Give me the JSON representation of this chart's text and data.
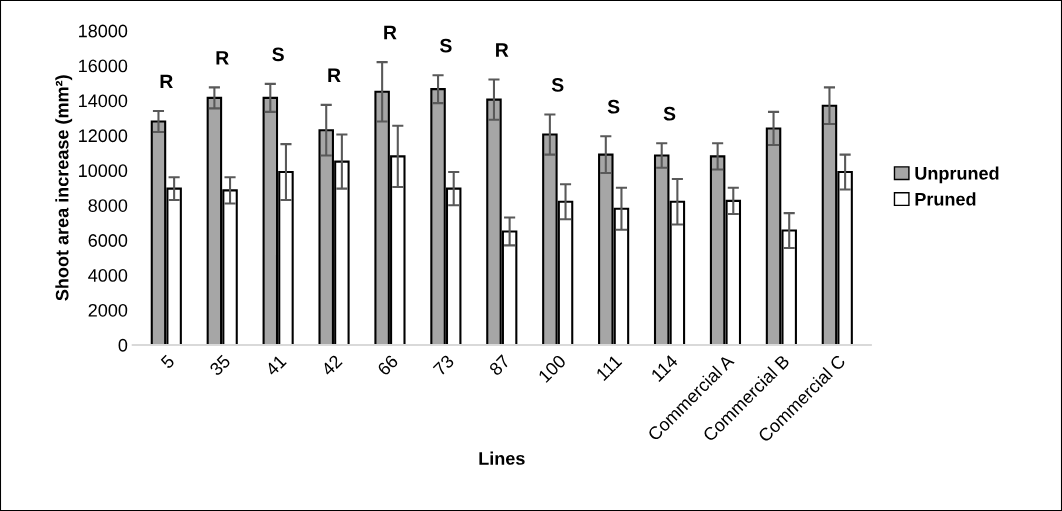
{
  "chart_data": {
    "type": "bar",
    "xlabel": "Lines",
    "ylabel": "Shoot area increase (mm²)",
    "categories": [
      "5",
      "35",
      "41",
      "42",
      "66",
      "73",
      "87",
      "100",
      "111",
      "114",
      "Commercial A",
      "Commercial B",
      "Commercial C"
    ],
    "series": [
      {
        "name": "Unpruned",
        "color": "#a6a6a6",
        "values": [
          12800,
          14150,
          14150,
          12300,
          14500,
          14650,
          14050,
          12050,
          10900,
          10850,
          10800,
          12400,
          13700
        ],
        "errors": [
          600,
          600,
          800,
          1450,
          1700,
          800,
          1150,
          1150,
          1050,
          700,
          750,
          950,
          1050
        ]
      },
      {
        "name": "Pruned",
        "color": "#ffffff",
        "values": [
          8950,
          8850,
          9900,
          10500,
          10800,
          8950,
          6500,
          8200,
          7800,
          8200,
          8250,
          6550,
          9900
        ],
        "errors": [
          650,
          750,
          1600,
          1550,
          1750,
          950,
          800,
          1000,
          1200,
          1300,
          750,
          1000,
          1000
        ]
      }
    ],
    "ylim": [
      0,
      18000
    ],
    "yticks": [
      0,
      2000,
      4000,
      6000,
      8000,
      10000,
      12000,
      14000,
      16000,
      18000
    ],
    "annotations": [
      "R",
      "R",
      "S",
      "R",
      "R",
      "S",
      "R",
      "S",
      "S",
      "S"
    ],
    "grid": false,
    "legend": "right"
  }
}
